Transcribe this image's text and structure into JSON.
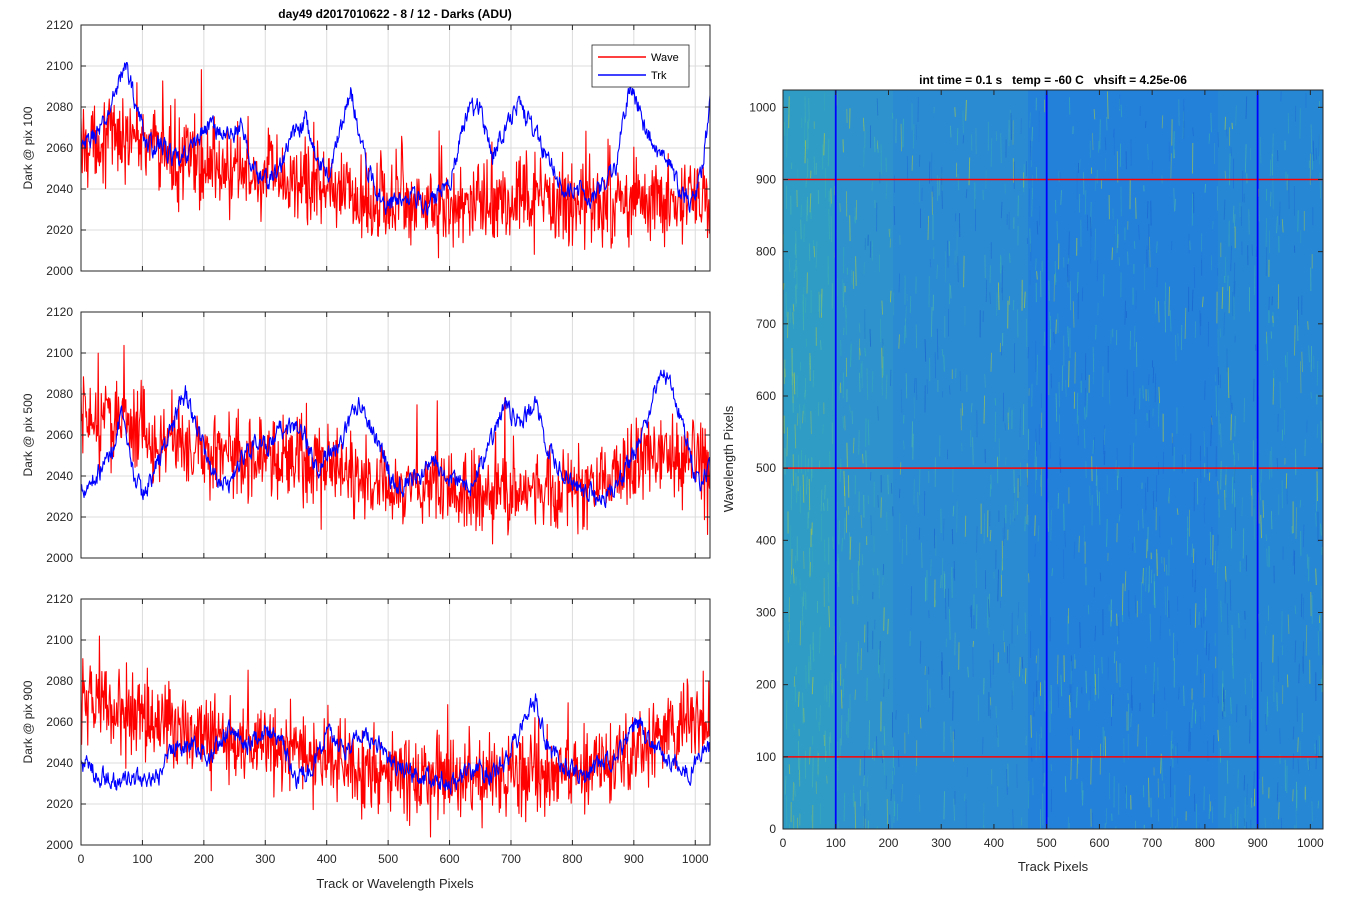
{
  "figure": {
    "title": "day49 d2017010622 - 8 / 12 - Darks (ADU)"
  },
  "colors": {
    "wave": "#ff0000",
    "trk": "#0000ff",
    "grid": "#dcdcdc",
    "axis": "#262626",
    "image_low": "#1f6fd8",
    "image_high": "#3db0b0",
    "image_hot": "#a6c94a"
  },
  "chart_data": [
    {
      "type": "line",
      "panel": "top",
      "title": "day49 d2017010622 - 8 / 12 - Darks (ADU)",
      "xlabel": "",
      "ylabel": "Dark @ pix 100",
      "xlim": [
        0,
        1024
      ],
      "ylim": [
        2000,
        2120
      ],
      "xticks": [
        "0",
        "100",
        "200",
        "300",
        "400",
        "500",
        "600",
        "700",
        "800",
        "900",
        "1000"
      ],
      "yticks": [
        "2000",
        "2020",
        "2040",
        "2060",
        "2080",
        "2100",
        "2120"
      ],
      "grid": true,
      "legend": {
        "position": "top-right",
        "entries": [
          "Wave",
          "Trk"
        ]
      },
      "series": [
        {
          "name": "Wave",
          "color": "#ff0000",
          "noise": 14,
          "knots_x": [
            0,
            50,
            100,
            150,
            200,
            250,
            300,
            350,
            400,
            450,
            500,
            550,
            600,
            650,
            700,
            750,
            800,
            850,
            900,
            950,
            1000,
            1024
          ],
          "knots_y": [
            2062,
            2066,
            2064,
            2056,
            2052,
            2048,
            2045,
            2044,
            2040,
            2036,
            2034,
            2033,
            2032,
            2032,
            2033,
            2034,
            2034,
            2033,
            2036,
            2034,
            2034,
            2030
          ]
        },
        {
          "name": "Trk",
          "color": "#0000ff",
          "noise": 5,
          "knots_x": [
            0,
            20,
            40,
            60,
            75,
            90,
            110,
            130,
            160,
            185,
            210,
            235,
            260,
            280,
            300,
            320,
            345,
            365,
            380,
            400,
            420,
            440,
            465,
            485,
            500,
            520,
            540,
            560,
            580,
            600,
            630,
            650,
            670,
            690,
            710,
            735,
            750,
            770,
            790,
            810,
            830,
            850,
            870,
            895,
            915,
            935,
            955,
            975,
            995,
            1010,
            1024
          ],
          "knots_y": [
            2058,
            2066,
            2072,
            2092,
            2100,
            2080,
            2060,
            2062,
            2052,
            2063,
            2072,
            2066,
            2070,
            2050,
            2044,
            2048,
            2066,
            2074,
            2058,
            2046,
            2066,
            2088,
            2050,
            2038,
            2032,
            2036,
            2040,
            2028,
            2038,
            2044,
            2078,
            2080,
            2056,
            2070,
            2082,
            2070,
            2060,
            2052,
            2036,
            2040,
            2036,
            2042,
            2050,
            2092,
            2072,
            2060,
            2052,
            2040,
            2032,
            2050,
            2080
          ]
        }
      ]
    },
    {
      "type": "line",
      "panel": "middle",
      "title": "",
      "xlabel": "",
      "ylabel": "Dark @ pix 500",
      "xlim": [
        0,
        1024
      ],
      "ylim": [
        2000,
        2120
      ],
      "xticks": [
        "0",
        "100",
        "200",
        "300",
        "400",
        "500",
        "600",
        "700",
        "800",
        "900",
        "1000"
      ],
      "yticks": [
        "2000",
        "2020",
        "2040",
        "2060",
        "2080",
        "2100",
        "2120"
      ],
      "grid": true,
      "series": [
        {
          "name": "Wave",
          "color": "#ff0000",
          "noise": 14,
          "knots_x": [
            0,
            50,
            100,
            150,
            200,
            250,
            300,
            350,
            400,
            450,
            500,
            550,
            600,
            650,
            700,
            750,
            800,
            850,
            900,
            950,
            1000,
            1024
          ],
          "knots_y": [
            2066,
            2068,
            2062,
            2056,
            2052,
            2050,
            2048,
            2046,
            2042,
            2038,
            2034,
            2034,
            2033,
            2032,
            2032,
            2033,
            2034,
            2036,
            2044,
            2052,
            2048,
            2044
          ]
        },
        {
          "name": "Trk",
          "color": "#0000ff",
          "noise": 5,
          "knots_x": [
            0,
            25,
            50,
            65,
            80,
            100,
            125,
            150,
            170,
            190,
            215,
            240,
            260,
            285,
            305,
            325,
            345,
            365,
            380,
            400,
            425,
            450,
            470,
            490,
            510,
            540,
            570,
            600,
            620,
            640,
            665,
            690,
            715,
            740,
            760,
            780,
            800,
            825,
            850,
            875,
            900,
            925,
            945,
            960,
            985,
            1005,
            1024
          ],
          "knots_y": [
            2034,
            2040,
            2052,
            2070,
            2046,
            2030,
            2046,
            2066,
            2080,
            2062,
            2042,
            2036,
            2048,
            2058,
            2052,
            2062,
            2064,
            2060,
            2044,
            2050,
            2056,
            2076,
            2066,
            2052,
            2036,
            2036,
            2046,
            2040,
            2038,
            2036,
            2056,
            2074,
            2066,
            2076,
            2052,
            2042,
            2036,
            2032,
            2030,
            2036,
            2050,
            2072,
            2092,
            2086,
            2060,
            2036,
            2042
          ]
        }
      ]
    },
    {
      "type": "line",
      "panel": "bottom",
      "title": "",
      "xlabel": "Track or Wavelength Pixels",
      "ylabel": "Dark @ pix 900",
      "xlim": [
        0,
        1024
      ],
      "ylim": [
        2000,
        2120
      ],
      "xticks": [
        "0",
        "100",
        "200",
        "300",
        "400",
        "500",
        "600",
        "700",
        "800",
        "900",
        "1000"
      ],
      "yticks": [
        "2000",
        "2020",
        "2040",
        "2060",
        "2080",
        "2100",
        "2120"
      ],
      "grid": true,
      "series": [
        {
          "name": "Wave",
          "color": "#ff0000",
          "noise": 14,
          "knots_x": [
            0,
            50,
            100,
            150,
            200,
            250,
            300,
            350,
            400,
            450,
            500,
            550,
            600,
            650,
            700,
            750,
            800,
            850,
            900,
            950,
            1000,
            1024
          ],
          "knots_y": [
            2068,
            2068,
            2062,
            2058,
            2054,
            2050,
            2048,
            2046,
            2042,
            2038,
            2034,
            2032,
            2032,
            2032,
            2034,
            2034,
            2036,
            2040,
            2046,
            2056,
            2060,
            2058
          ]
        },
        {
          "name": "Trk",
          "color": "#0000ff",
          "noise": 5,
          "knots_x": [
            0,
            30,
            60,
            90,
            120,
            150,
            180,
            210,
            240,
            270,
            300,
            330,
            350,
            375,
            400,
            430,
            460,
            490,
            520,
            550,
            580,
            610,
            640,
            670,
            700,
            720,
            740,
            760,
            790,
            820,
            850,
            880,
            905,
            930,
            960,
            990,
            1010,
            1024
          ],
          "knots_y": [
            2040,
            2034,
            2030,
            2032,
            2030,
            2048,
            2050,
            2042,
            2056,
            2050,
            2056,
            2048,
            2032,
            2036,
            2056,
            2046,
            2056,
            2048,
            2038,
            2034,
            2032,
            2030,
            2036,
            2034,
            2046,
            2060,
            2070,
            2048,
            2038,
            2032,
            2040,
            2046,
            2060,
            2048,
            2040,
            2036,
            2042,
            2048
          ]
        }
      ]
    },
    {
      "type": "heatmap",
      "panel": "image",
      "title": "int time = 0.1 s   temp = -60 C   vhsift = 4.25e-06",
      "xlabel": "Track Pixels",
      "ylabel": "Wavelength Pixels",
      "xlim": [
        0,
        1024
      ],
      "ylim": [
        0,
        1024
      ],
      "xticks": [
        "0",
        "100",
        "200",
        "300",
        "400",
        "500",
        "600",
        "700",
        "800",
        "900",
        "1000"
      ],
      "yticks": [
        "0",
        "100",
        "200",
        "300",
        "400",
        "500",
        "600",
        "700",
        "800",
        "900",
        "1000"
      ],
      "vertical_markers": [
        100,
        500,
        900
      ],
      "horizontal_markers": [
        100,
        500,
        900
      ],
      "vertical_marker_color": "#0000ff",
      "horizontal_marker_color": "#ff0000"
    }
  ]
}
